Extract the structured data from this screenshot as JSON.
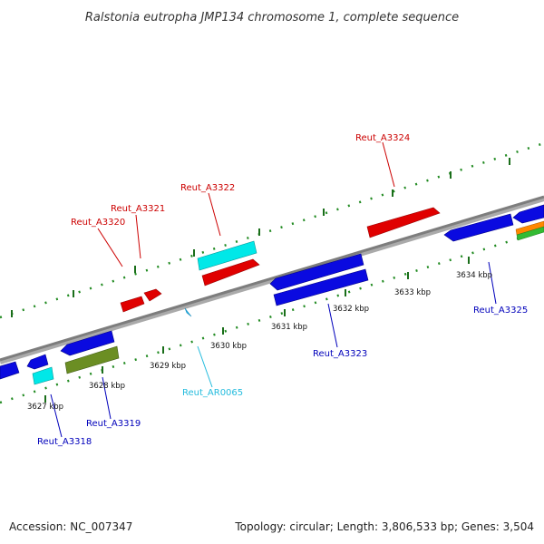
{
  "title": "Ralstonia eutropha JMP134 chromosome 1, complete sequence",
  "footer": {
    "accession": "Accession: NC_007347",
    "stats": "Topology: circular; Length: 3,806,533 bp; Genes: 3,504"
  },
  "colors": {
    "label_top": "#cc0000",
    "label_bottom": "#0000bb",
    "label_rna": "#22bbdd",
    "backbone": "#888888",
    "ticks": "#228B22"
  },
  "scale_labels": [
    "3627 kbp",
    "3628 kbp",
    "3629 kbp",
    "3630 kbp",
    "3631 kbp",
    "3632 kbp",
    "3633 kbp",
    "3634 kbp"
  ],
  "gene_labels": [
    {
      "name": "Reut_A3318",
      "color": "blue"
    },
    {
      "name": "Reut_A3319",
      "color": "blue"
    },
    {
      "name": "Reut_A3320",
      "color": "red"
    },
    {
      "name": "Reut_A3321",
      "color": "red"
    },
    {
      "name": "Reut_A3322",
      "color": "red"
    },
    {
      "name": "Reut_AR0065",
      "color": "cyan"
    },
    {
      "name": "Reut_A3323",
      "color": "blue"
    },
    {
      "name": "Reut_A3324",
      "color": "red"
    },
    {
      "name": "Reut_A3325",
      "color": "blue"
    }
  ]
}
